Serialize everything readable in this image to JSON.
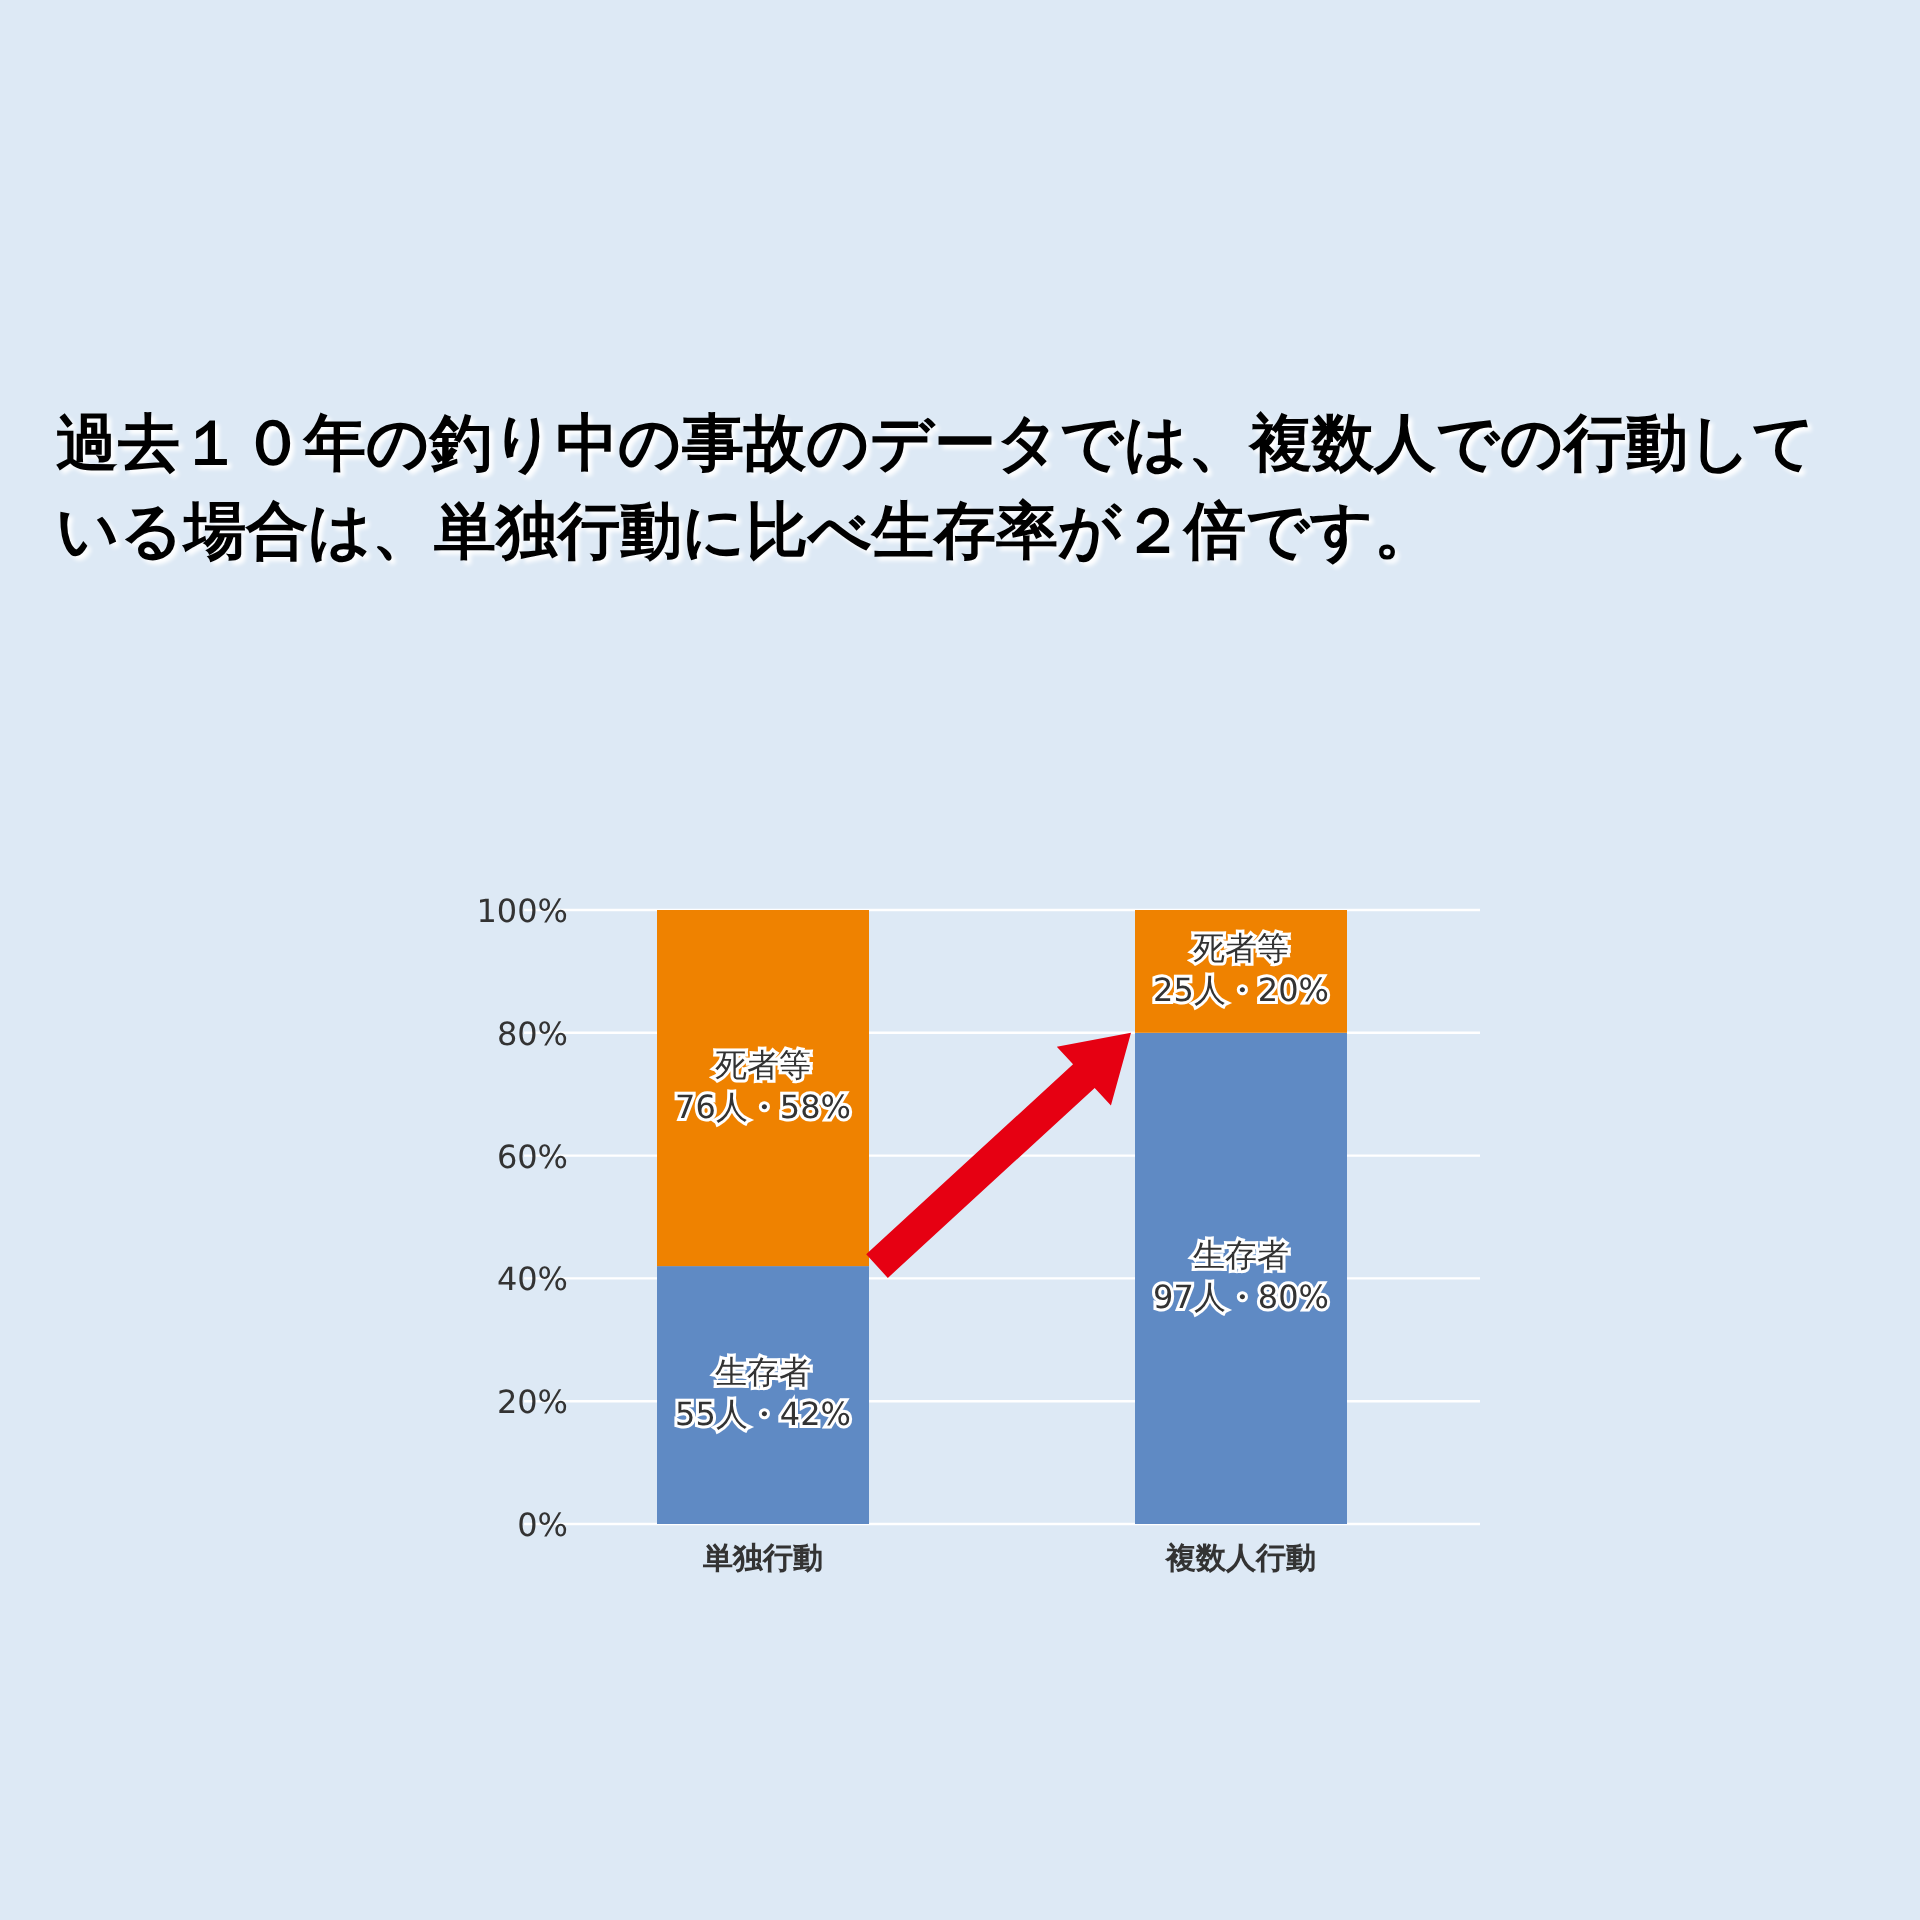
{
  "chart_data": {
    "type": "bar",
    "stacked": true,
    "title": "過去１０年の釣り中の事故のデータでは、複数人での行動している場合は、単独行動に比べ生存率が２倍です。",
    "categories": [
      "単独行動",
      "複数人行動"
    ],
    "series": [
      {
        "name": "生存者",
        "color": "#5f8ac4",
        "values": [
          42,
          80
        ],
        "value_labels": [
          "55人・42%",
          "97人・80%"
        ]
      },
      {
        "name": "死者等",
        "color": "#ef8200",
        "values": [
          58,
          20
        ],
        "value_labels": [
          "76人・58%",
          "25人・20%"
        ]
      }
    ],
    "ylim": [
      0,
      100
    ],
    "yticks": [
      {
        "value": 0,
        "label": "0%"
      },
      {
        "value": 20,
        "label": "20%"
      },
      {
        "value": 40,
        "label": "40%"
      },
      {
        "value": 60,
        "label": "60%"
      },
      {
        "value": 80,
        "label": "80%"
      },
      {
        "value": 100,
        "label": "100%"
      }
    ],
    "grid": "y",
    "legend": false
  }
}
